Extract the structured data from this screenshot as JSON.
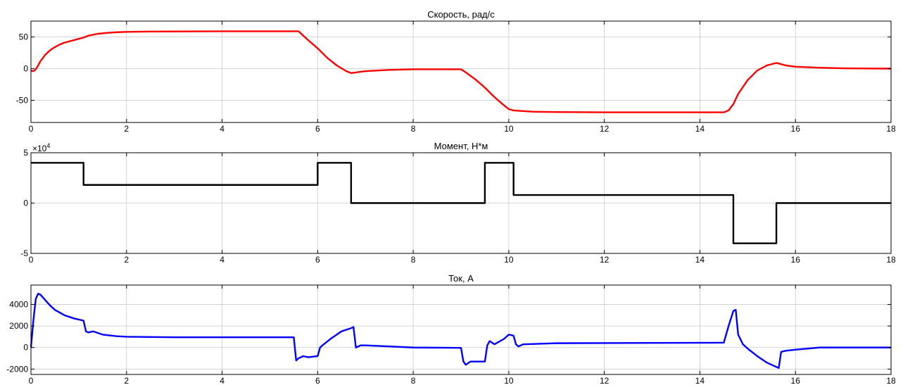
{
  "chart_data": [
    {
      "type": "line",
      "title": "Скорость, рад/с",
      "xlabel": "",
      "ylabel": "",
      "xlim": [
        0,
        18
      ],
      "ylim": [
        -85,
        75
      ],
      "xticks": [
        0,
        2,
        4,
        6,
        8,
        10,
        12,
        14,
        16,
        18
      ],
      "yticks": [
        50,
        0,
        -50
      ],
      "grid": true,
      "series": [
        {
          "color": "#ff0000",
          "x": [
            0,
            0.05,
            0.1,
            0.15,
            0.2,
            0.3,
            0.4,
            0.5,
            0.6,
            0.7,
            0.8,
            0.9,
            1.0,
            1.1,
            1.2,
            1.4,
            1.6,
            1.8,
            2.0,
            2.5,
            3.0,
            4.0,
            5.0,
            5.6,
            5.7,
            5.8,
            6.0,
            6.2,
            6.4,
            6.6,
            6.7,
            6.8,
            7.0,
            7.5,
            8.0,
            9.0,
            9.1,
            9.3,
            9.5,
            9.7,
            9.9,
            10.0,
            10.1,
            10.3,
            10.5,
            11.0,
            12.0,
            13.0,
            14.0,
            14.5,
            14.6,
            14.7,
            14.8,
            15.0,
            15.2,
            15.4,
            15.6,
            15.7,
            15.8,
            16.0,
            16.5,
            17.0,
            18.0
          ],
          "values": [
            -3,
            -4,
            -1,
            5,
            12,
            22,
            29,
            34,
            38,
            41,
            43,
            45,
            47,
            49,
            52,
            55,
            56.5,
            57.5,
            58,
            58.5,
            58.7,
            59,
            59,
            59,
            52,
            45,
            32,
            17,
            5,
            -4,
            -7,
            -6,
            -4,
            -2,
            -1,
            -1,
            -6,
            -17,
            -30,
            -45,
            -58,
            -64,
            -66,
            -67,
            -68,
            -68.5,
            -69,
            -69,
            -69,
            -69,
            -66,
            -56,
            -40,
            -18,
            -3,
            5,
            9,
            7,
            5,
            3,
            1.5,
            0.5,
            0
          ]
        }
      ]
    },
    {
      "type": "line",
      "title": "Момент, Н*м",
      "multiplier_label": "×10",
      "multiplier_exponent": "4",
      "xlabel": "",
      "ylabel": "",
      "xlim": [
        0,
        18
      ],
      "ylim": [
        -5,
        5
      ],
      "xticks": [
        0,
        2,
        4,
        6,
        8,
        10,
        12,
        14,
        16,
        18
      ],
      "yticks": [
        5,
        0,
        -5
      ],
      "grid": true,
      "series": [
        {
          "color": "#000000",
          "x": [
            0,
            1.1,
            1.1,
            6.0,
            6.0,
            6.7,
            6.7,
            9.5,
            9.5,
            10.1,
            10.1,
            14.7,
            14.7,
            15.6,
            15.6,
            18
          ],
          "values": [
            4,
            4,
            1.8,
            1.8,
            4,
            4,
            0,
            0,
            4,
            4,
            0.8,
            0.8,
            -4,
            -4,
            0,
            0
          ]
        }
      ]
    },
    {
      "type": "line",
      "title": "Ток, А",
      "xlabel": "",
      "ylabel": "",
      "xlim": [
        0,
        18
      ],
      "ylim": [
        -2500,
        5800
      ],
      "xticks": [
        0,
        2,
        4,
        6,
        8,
        10,
        12,
        14,
        16,
        18
      ],
      "yticks": [
        4000,
        2000,
        0,
        -2000
      ],
      "grid": true,
      "series": [
        {
          "color": "#0000ff",
          "x": [
            0,
            0.05,
            0.1,
            0.15,
            0.2,
            0.3,
            0.4,
            0.5,
            0.7,
            0.9,
            1.1,
            1.15,
            1.2,
            1.3,
            1.5,
            1.8,
            2.0,
            3.0,
            4.0,
            5.5,
            5.55,
            5.6,
            5.7,
            5.8,
            6.0,
            6.05,
            6.1,
            6.3,
            6.5,
            6.7,
            6.75,
            6.8,
            6.9,
            7.0,
            7.5,
            8.0,
            9.0,
            9.05,
            9.1,
            9.2,
            9.5,
            9.55,
            9.6,
            9.7,
            9.9,
            10.0,
            10.1,
            10.15,
            10.2,
            10.3,
            11.0,
            14.5,
            14.6,
            14.7,
            14.75,
            14.8,
            14.9,
            15.0,
            15.2,
            15.4,
            15.6,
            15.65,
            15.7,
            15.8,
            16.0,
            16.5,
            18.0
          ],
          "values": [
            0,
            2500,
            4500,
            5000,
            4900,
            4400,
            3900,
            3500,
            3000,
            2700,
            2500,
            1500,
            1400,
            1500,
            1200,
            1050,
            1000,
            950,
            950,
            950,
            -1200,
            -1000,
            -800,
            -900,
            -800,
            0,
            200,
            900,
            1500,
            1800,
            1900,
            0,
            200,
            200,
            100,
            0,
            -30,
            -1300,
            -1600,
            -1300,
            -1300,
            200,
            600,
            300,
            800,
            1200,
            1100,
            300,
            100,
            300,
            400,
            450,
            2000,
            3400,
            3500,
            1200,
            300,
            -100,
            -800,
            -1400,
            -1800,
            -1900,
            -400,
            -300,
            -200,
            0,
            0
          ]
        }
      ]
    }
  ]
}
